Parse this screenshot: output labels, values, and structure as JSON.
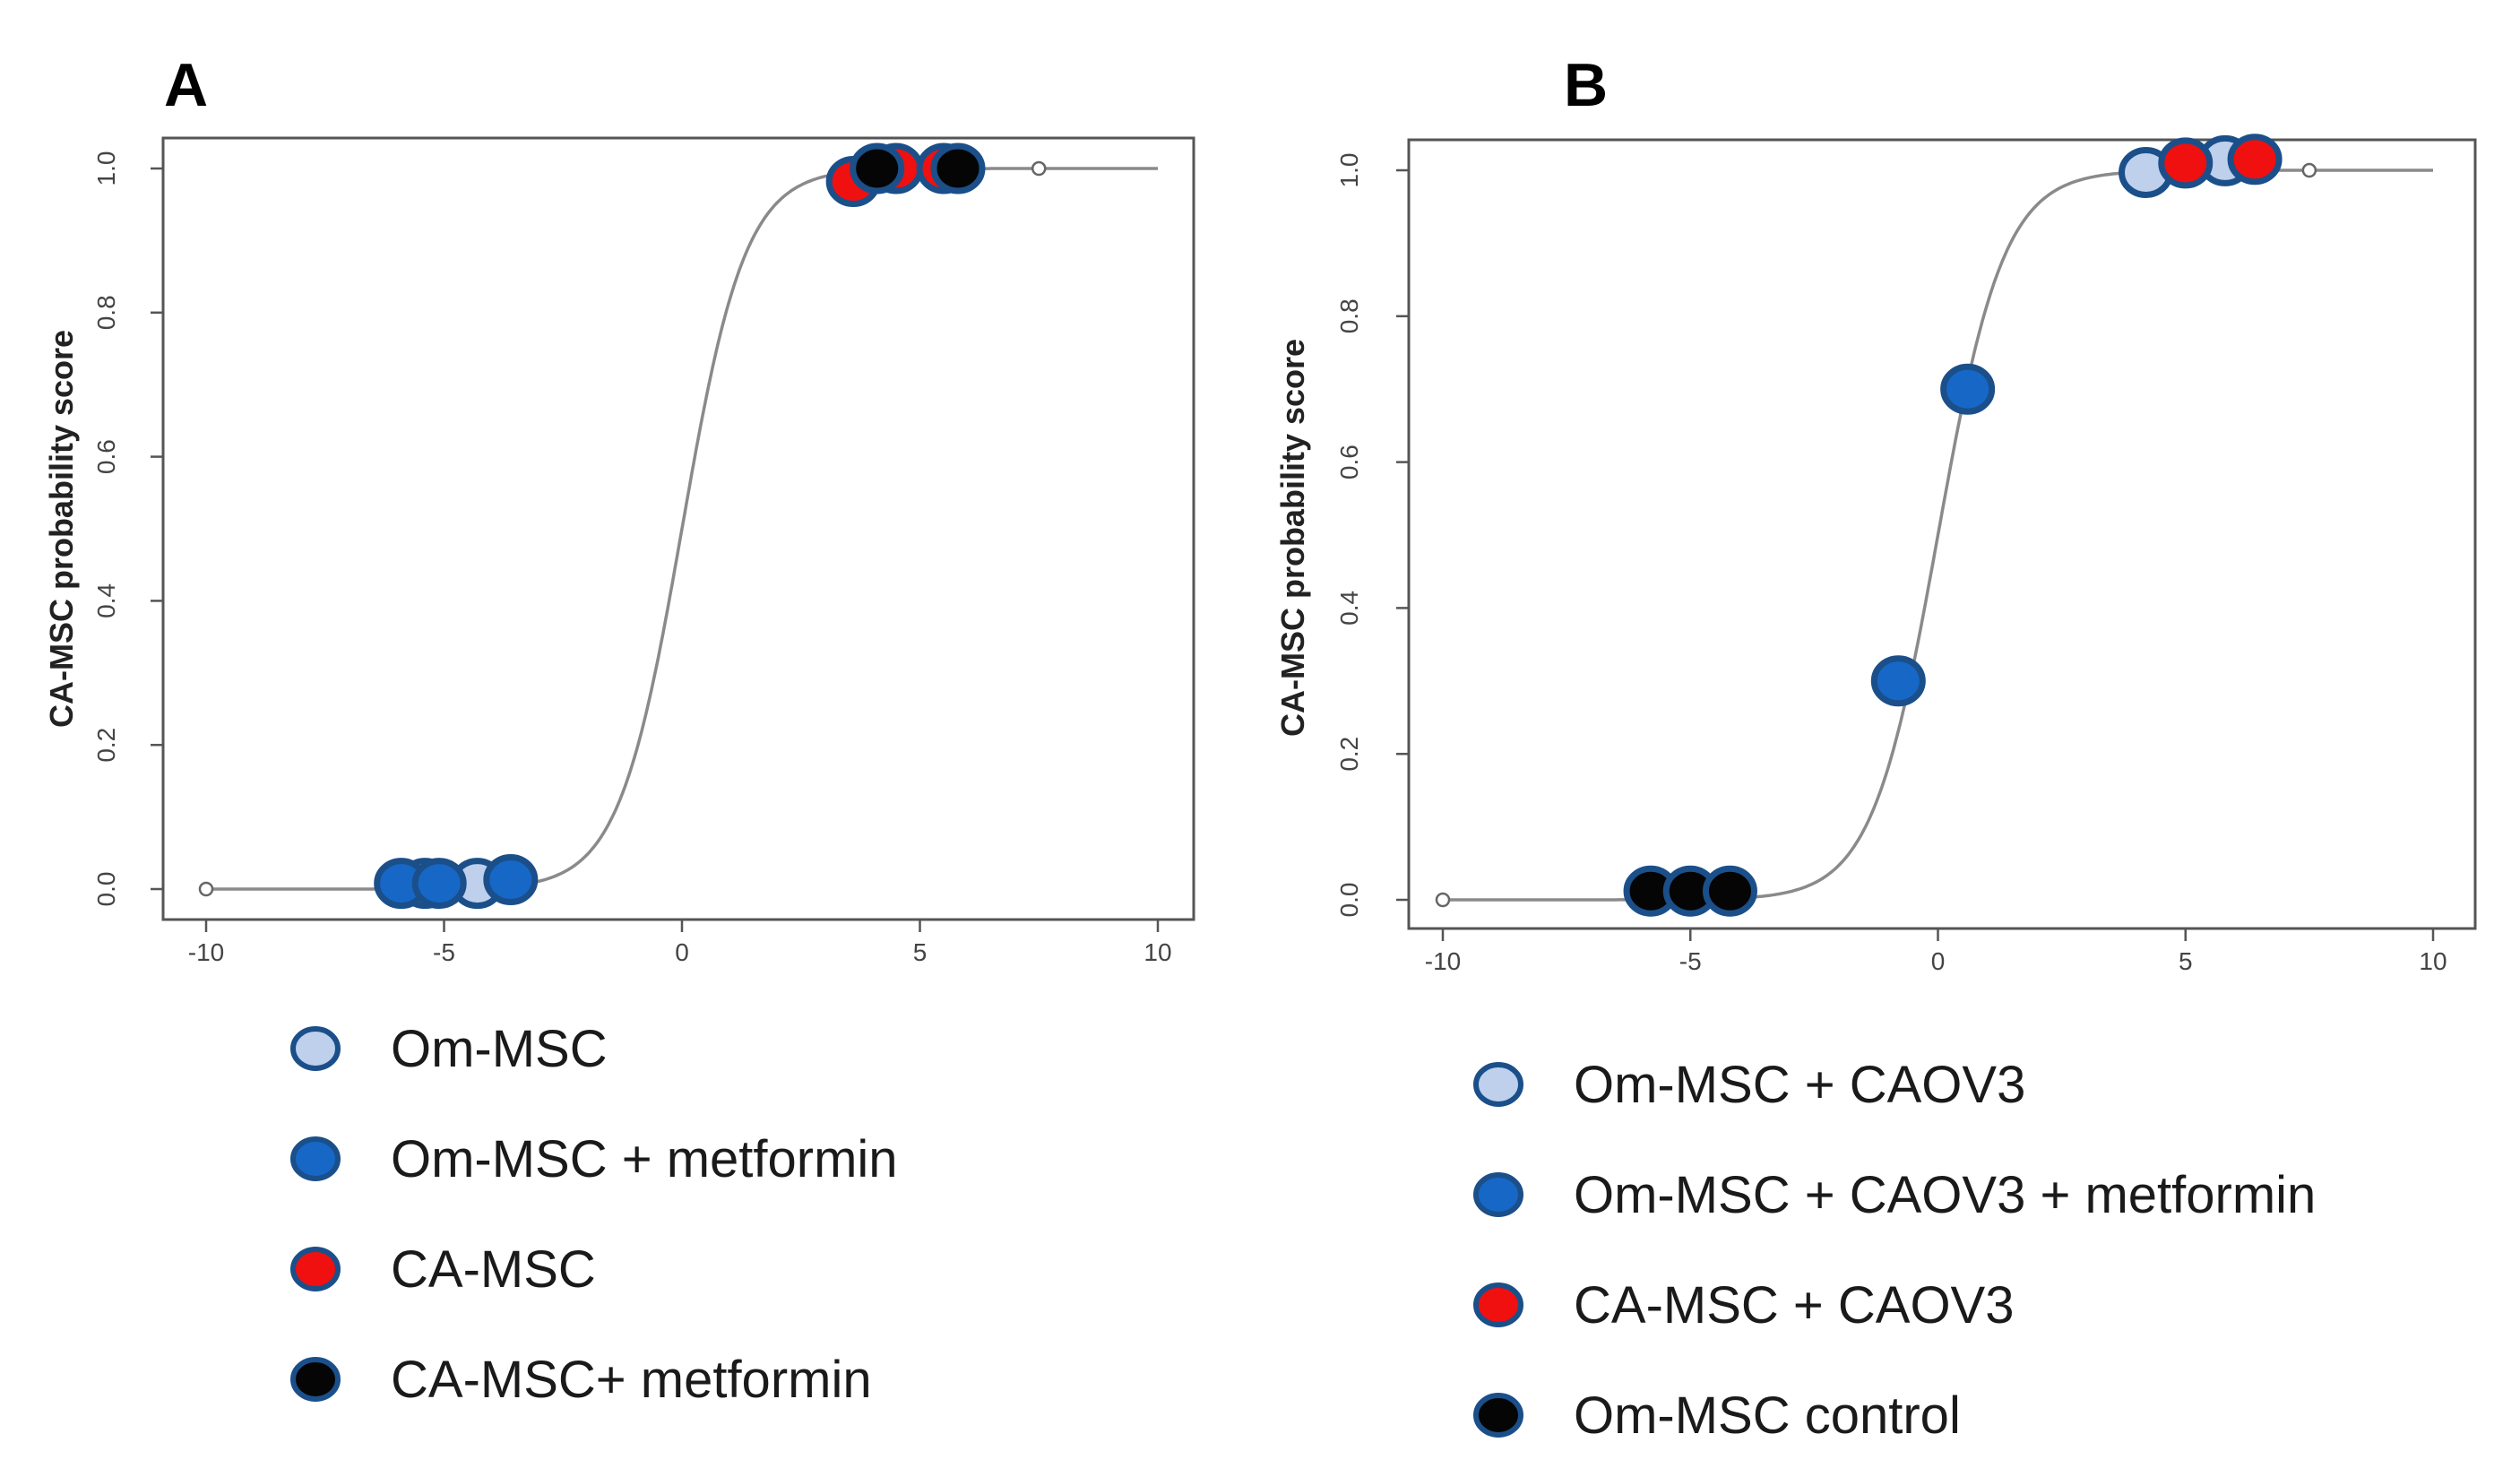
{
  "chart_data": [
    {
      "panel": "A",
      "type": "scatter",
      "title": "",
      "xlabel": "",
      "ylabel": "CA-MSC probability score",
      "xlim": [
        -10,
        10
      ],
      "ylim": [
        0,
        1
      ],
      "xticks": [
        "-10",
        "-5",
        "0",
        "5",
        "10"
      ],
      "yticks": [
        "0.0",
        "0.2",
        "0.4",
        "0.6",
        "0.8",
        "1.0"
      ],
      "curve": {
        "type": "logistic",
        "x_min": -10,
        "x_max": 10,
        "slope": 1.5,
        "midpoint": 0
      },
      "series": [
        {
          "name": "Om-MSC",
          "fill": "#bed0ec",
          "points": [
            {
              "x": -5.4,
              "y": 0.008
            },
            {
              "x": -4.3,
              "y": 0.008
            }
          ]
        },
        {
          "name": "Om-MSC + metformin",
          "fill": "#1767c7",
          "points": [
            {
              "x": -5.9,
              "y": 0.008
            },
            {
              "x": -5.1,
              "y": 0.008
            },
            {
              "x": -3.6,
              "y": 0.013
            }
          ]
        },
        {
          "name": "CA-MSC",
          "fill": "#f01010",
          "points": [
            {
              "x": 3.6,
              "y": 0.982
            },
            {
              "x": 4.5,
              "y": 1.0
            },
            {
              "x": 5.5,
              "y": 1.0
            }
          ]
        },
        {
          "name": "CA-MSC+ metformin",
          "fill": "#050505",
          "points": [
            {
              "x": 4.1,
              "y": 1.0
            },
            {
              "x": 5.8,
              "y": 1.0
            }
          ]
        }
      ]
    },
    {
      "panel": "B",
      "type": "scatter",
      "title": "",
      "xlabel": "",
      "ylabel": "CA-MSC probability score",
      "xlim": [
        -10,
        10
      ],
      "ylim": [
        0,
        1
      ],
      "xticks": [
        "-10",
        "-5",
        "0",
        "5",
        "10"
      ],
      "yticks": [
        "0.0",
        "0.2",
        "0.4",
        "0.6",
        "0.8",
        "1.0"
      ],
      "curve": {
        "type": "logistic",
        "x_min": -10,
        "x_max": 10,
        "slope": 1.5,
        "midpoint": 0
      },
      "series": [
        {
          "name": "Om-MSC + CAOV3",
          "fill": "#bed0ec",
          "points": [
            {
              "x": 4.2,
              "y": 0.997
            },
            {
              "x": 5.8,
              "y": 1.013
            }
          ]
        },
        {
          "name": "Om-MSC + CAOV3 + metformin",
          "fill": "#1767c7",
          "points": [
            {
              "x": -0.8,
              "y": 0.3
            },
            {
              "x": 0.6,
              "y": 0.7
            }
          ]
        },
        {
          "name": "CA-MSC + CAOV3",
          "fill": "#f01010",
          "points": [
            {
              "x": 5.0,
              "y": 1.01
            },
            {
              "x": 6.4,
              "y": 1.015
            }
          ]
        },
        {
          "name": "Om-MSC control",
          "fill": "#050505",
          "points": [
            {
              "x": -5.8,
              "y": 0.012
            },
            {
              "x": -5.0,
              "y": 0.012
            },
            {
              "x": -4.2,
              "y": 0.012
            }
          ]
        }
      ]
    }
  ],
  "legend_outline": "#1b4f8a"
}
